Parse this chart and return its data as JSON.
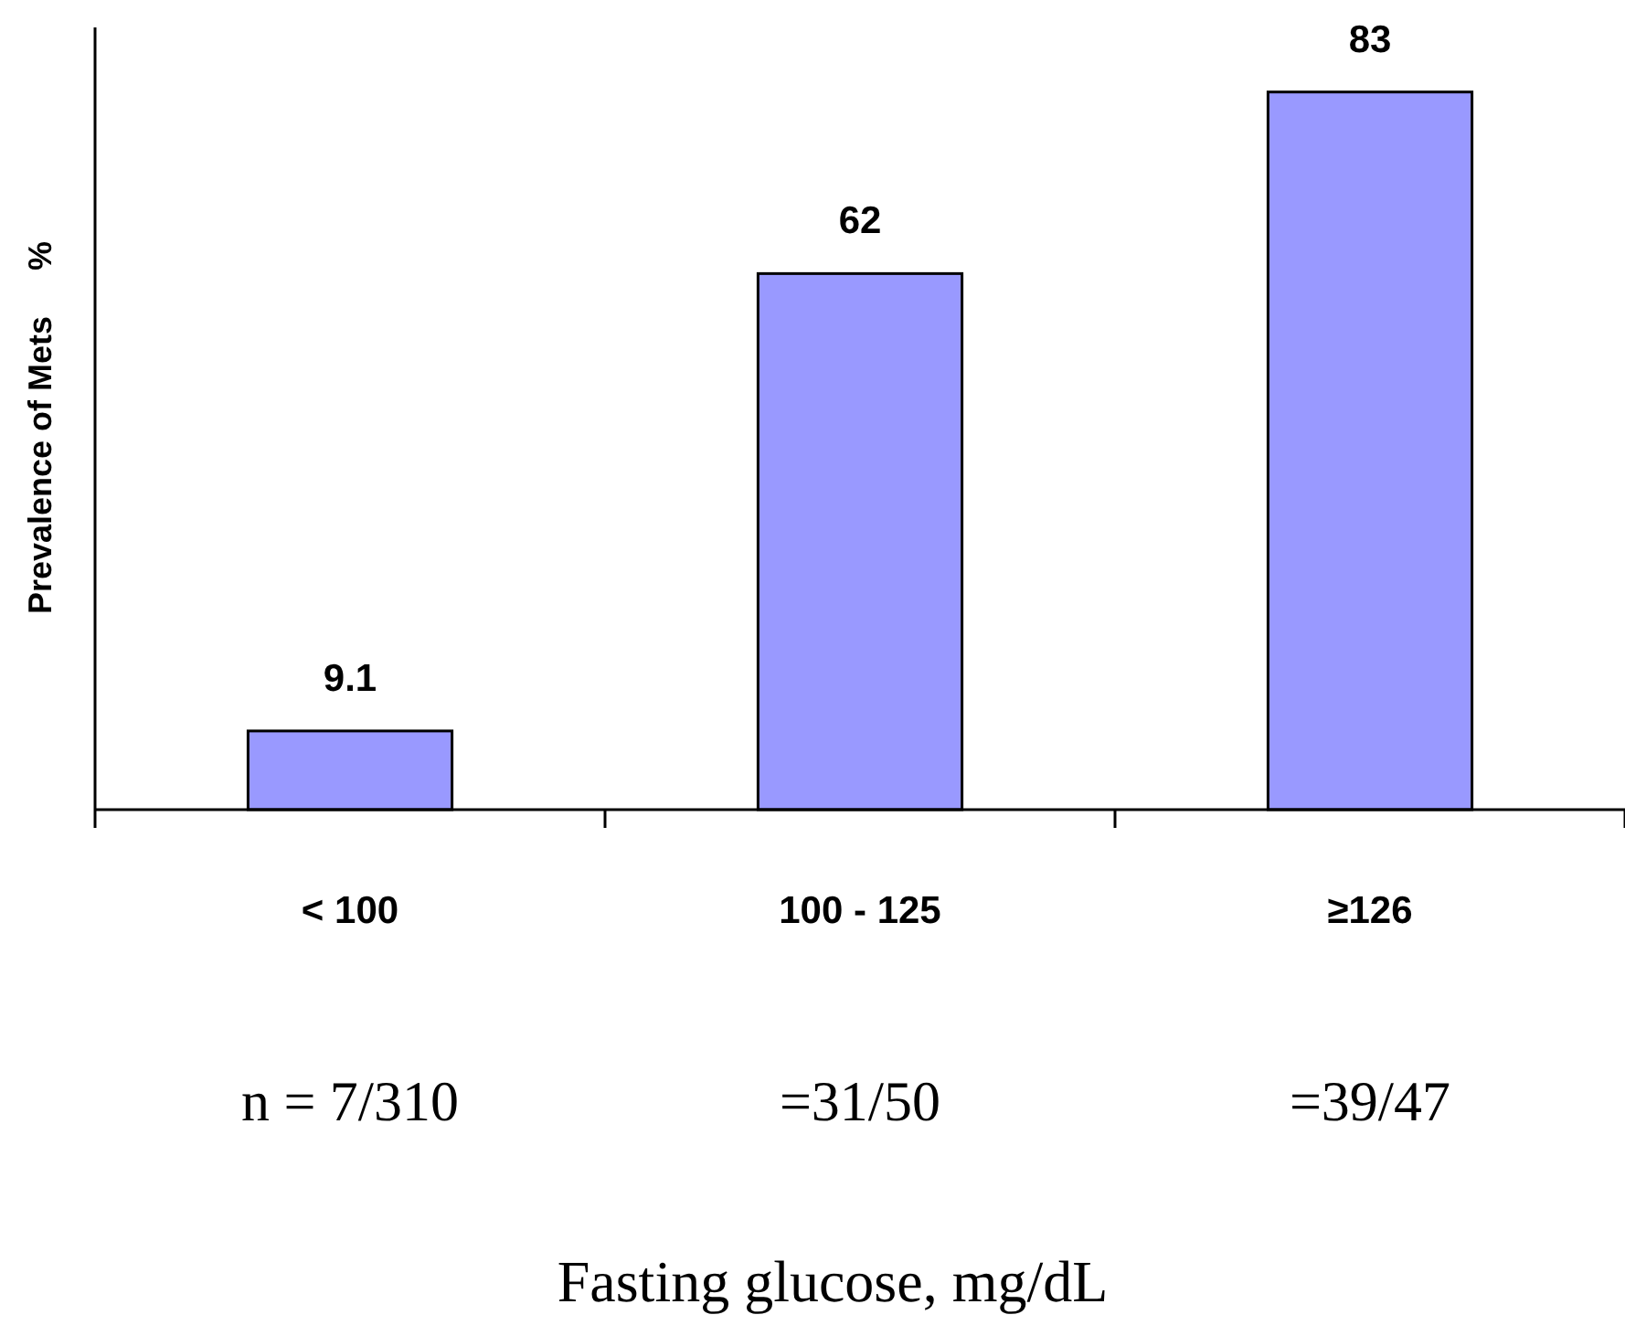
{
  "chart_data": {
    "type": "bar",
    "ylabel": "Prevalence of Mets     %",
    "categories": [
      "< 100",
      "100 - 125",
      "≥126"
    ],
    "values": [
      9.1,
      62,
      83
    ],
    "color": "#9999ff",
    "data_labels": true,
    "annotations": [
      "n = 7/310",
      "=31/50",
      "=39/47",
      "Fasting glucose, mg/dL"
    ]
  }
}
